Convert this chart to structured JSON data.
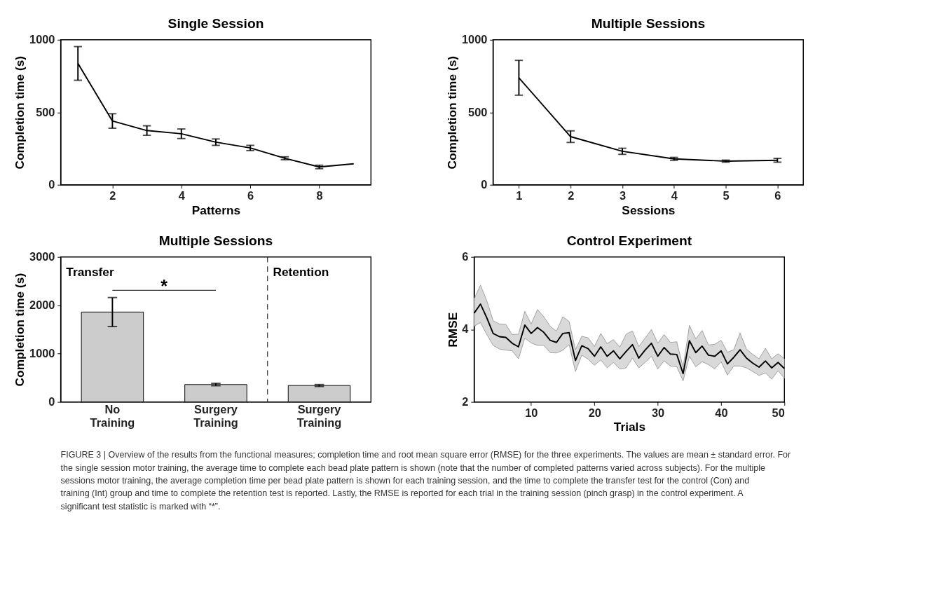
{
  "chart_data": [
    {
      "type": "line",
      "title": "Single Session",
      "xlabel": "Patterns",
      "ylabel": "Completion time (s)",
      "xlim": [
        0.5,
        9.5
      ],
      "xticks": [
        2,
        4,
        6,
        8
      ],
      "ylim": [
        0,
        1000
      ],
      "yticks": [
        0,
        500,
        1000
      ],
      "x": [
        1,
        2,
        3,
        4,
        5,
        6,
        7,
        8,
        9
      ],
      "series": [
        {
          "color": "#000000",
          "values": [
            837,
            440,
            374,
            352,
            294,
            254,
            183,
            123,
            145
          ],
          "errors": [
            116,
            50,
            33,
            33,
            22,
            18,
            10,
            12,
            null
          ]
        }
      ]
    },
    {
      "type": "line",
      "title": "Multiple Sessions",
      "xlabel": "Sessions",
      "ylabel": "Completion time (s)",
      "xlim": [
        0.5,
        6.5
      ],
      "xticks": [
        1,
        2,
        3,
        4,
        5,
        6
      ],
      "ylim": [
        0,
        1000
      ],
      "yticks": [
        0,
        500,
        1000
      ],
      "x": [
        1,
        2,
        3,
        4,
        5,
        6
      ],
      "series": [
        {
          "color": "#000000",
          "values": [
            738,
            332,
            231,
            179,
            163,
            169
          ],
          "errors": [
            120,
            40,
            21,
            10,
            7,
            13
          ]
        }
      ]
    },
    {
      "type": "bar",
      "title": "Multiple Sessions",
      "ylabel": "Completion time (s)",
      "ylim": [
        0,
        3000
      ],
      "yticks": [
        0,
        1000,
        2000,
        3000
      ],
      "categories": [
        "No Training",
        "Surgery Training",
        "Surgery Training"
      ],
      "values": [
        1860,
        360,
        340
      ],
      "errors": [
        300,
        25,
        20
      ],
      "color": "#cccccc",
      "annotations": [
        "Transfer",
        "Retention",
        "*"
      ]
    },
    {
      "type": "line",
      "title": "Control Experiment",
      "xlabel": "Trials",
      "ylabel": "RMSE",
      "xlim": [
        1,
        50
      ],
      "xticks": [
        10,
        20,
        30,
        40,
        50
      ],
      "ylim": [
        2,
        6
      ],
      "yticks": [
        2,
        4,
        6
      ],
      "x": [
        1,
        2,
        3,
        4,
        5,
        6,
        7,
        8,
        9,
        10,
        11,
        12,
        13,
        14,
        15,
        16,
        17,
        18,
        19,
        20,
        21,
        22,
        23,
        24,
        25,
        26,
        27,
        28,
        29,
        30,
        31,
        32,
        33,
        34,
        35,
        36,
        37,
        38,
        39,
        40,
        41,
        42,
        43,
        44,
        45,
        46,
        47,
        48,
        49,
        50
      ],
      "series": [
        {
          "color": "#000000",
          "values": [
            4.45,
            4.7,
            4.32,
            3.89,
            3.8,
            3.78,
            3.62,
            3.52,
            4.12,
            3.89,
            4.05,
            3.92,
            3.7,
            3.64,
            3.89,
            3.91,
            3.14,
            3.55,
            3.47,
            3.26,
            3.52,
            3.26,
            3.41,
            3.19,
            3.39,
            3.58,
            3.21,
            3.43,
            3.62,
            3.26,
            3.5,
            3.32,
            3.31,
            2.78,
            3.69,
            3.36,
            3.54,
            3.29,
            3.26,
            3.41,
            3.05,
            3.23,
            3.44,
            3.21,
            3.07,
            2.96,
            3.13,
            2.94,
            3.09,
            2.92
          ],
          "upper": [
            4.85,
            5.22,
            4.79,
            4.24,
            4.15,
            4.14,
            3.86,
            3.87,
            4.5,
            4.15,
            4.55,
            4.35,
            4.09,
            3.95,
            4.35,
            4.22,
            3.44,
            3.81,
            3.77,
            3.53,
            3.89,
            3.61,
            3.72,
            3.51,
            3.87,
            3.96,
            3.53,
            3.76,
            4.0,
            3.62,
            3.86,
            3.64,
            3.66,
            2.96,
            4.11,
            3.74,
            3.97,
            3.57,
            3.59,
            3.7,
            3.37,
            3.44,
            3.9,
            3.46,
            3.31,
            3.19,
            3.48,
            3.19,
            3.33,
            3.19
          ],
          "lower": [
            4.09,
            4.19,
            3.86,
            3.56,
            3.46,
            3.43,
            3.41,
            3.19,
            3.76,
            3.63,
            3.56,
            3.56,
            3.36,
            3.35,
            3.43,
            3.58,
            2.84,
            3.29,
            3.18,
            3.01,
            3.16,
            2.94,
            3.09,
            2.91,
            2.94,
            3.21,
            2.94,
            3.09,
            3.26,
            2.91,
            3.13,
            2.99,
            2.97,
            2.58,
            3.26,
            2.97,
            3.11,
            3.03,
            2.91,
            3.11,
            2.74,
            2.99,
            2.99,
            2.94,
            2.84,
            2.73,
            2.8,
            2.63,
            2.86,
            2.65
          ]
        }
      ]
    },
    {
      "type": "other",
      "annotations": [
        "FIGURE 3 | Overview of the results from the functional measures; completion time and root mean square error (RMSE) for the three experiments. The values are mean ± standard error. For the single session motor training, the average time to complete each bead plate pattern is shown (note that the number of completed patterns varied across subjects). For the multiple sessions motor training, the average completion time per bead plate pattern is shown for each training session, and the time to complete the transfer test for the control (Con) and training (Int) group and time to complete the retention test is reported. Lastly, the RMSE is reported for each trial in the training session (pinch grasp) in the control experiment. A significant test statistic is marked with “*”."
      ]
    }
  ]
}
